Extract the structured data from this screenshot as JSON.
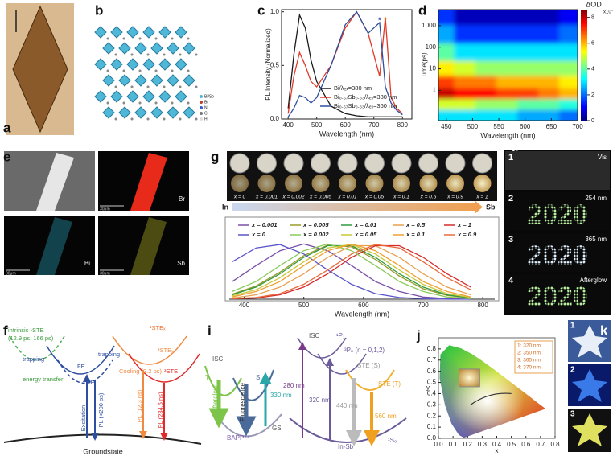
{
  "panel_labels": [
    "a",
    "b",
    "c",
    "d",
    "e",
    "f",
    "g",
    "h",
    "i",
    "j",
    "k"
  ],
  "panel_b": {
    "legend": [
      "Bi/Sb",
      "Br",
      "N",
      "C",
      "H"
    ]
  },
  "panel_e": {
    "labels": [
      "Br",
      "Bi",
      "Sb"
    ],
    "scale_labels": [
      "30μm",
      "30μm",
      "30μm"
    ]
  },
  "panel_f": {
    "labels": [
      "intrinsic ¹STE",
      "(12.9 ps, 166 ps)",
      "trapping",
      "trapping",
      "FE",
      "FE",
      "¹STEₓ",
      "³STEₓ",
      "³STE",
      "Cooling (3.2 ps)",
      "energy transfer",
      "Excitation",
      "PL (<200 ps)",
      "PL (12.3 ns)",
      "PL (234.5 ns)",
      "Groundstate"
    ]
  },
  "panel_h": {
    "items": [
      {
        "number": "1",
        "label": "Vis"
      },
      {
        "number": "2",
        "label": "254 nm",
        "display": "2020"
      },
      {
        "number": "3",
        "label": "365 nm",
        "display": "2020"
      },
      {
        "number": "4",
        "label": "Afterglow",
        "display": "2020"
      }
    ]
  },
  "panel_i": {
    "labels": [
      "ISC",
      "T₁",
      "S₁",
      "Afterglow",
      "Fluorescence",
      "330 nm",
      "BAPP⁴⁺",
      "GS",
      "ISC",
      "¹P₁",
      "³Pₙ (n = 0,1,2)",
      "STE (S)",
      "STE (T)",
      "280 nm",
      "320 nm",
      "440 nm",
      "560 nm",
      "¹S₀",
      "In-Sb"
    ]
  },
  "panel_k": {
    "numbers": [
      "1",
      "2",
      "3"
    ]
  },
  "chart_data": [
    {
      "type": "line",
      "xlabel": "Wavelength (nm)",
      "ylabel": "PL Intensity (Normalized)",
      "xlim": [
        377,
        833
      ],
      "xticks": [
        400,
        500,
        600,
        700,
        800
      ],
      "ylim": [
        0,
        1.02
      ],
      "yticks": [
        {
          "value": 0,
          "label": "0.0"
        },
        0.5,
        {
          "value": 1,
          "label": "1.0"
        }
      ],
      "x": [
        400,
        420,
        440,
        460,
        480,
        500,
        550,
        600,
        640,
        680,
        720,
        740,
        760,
        780,
        800
      ],
      "series": [
        {
          "name": "Bi/λₑₓ=380 nm",
          "color": "#1a1a1a",
          "values": [
            0.1,
            0.6,
            0.97,
            0.85,
            0.55,
            0.35,
            0.12,
            0.05,
            0.03,
            0.02,
            0.02,
            0.02,
            0.02,
            0.02,
            0.02
          ]
        },
        {
          "name": "Bi₀.₆₇Sb₀.₃₃/λₑₓ=380 nm",
          "color": "#e03a2a",
          "values": [
            0.05,
            0.4,
            0.62,
            0.5,
            0.35,
            0.3,
            0.5,
            0.85,
            1.0,
            0.8,
            0.4,
            0.95,
            0.2,
            0.1,
            0.05
          ]
        },
        {
          "name": "Bi₀.₆₇Sb₀.₃₃/λₑₓ=360 nm",
          "color": "#2d4f9e",
          "values": [
            0.02,
            0.1,
            0.22,
            0.2,
            0.15,
            0.2,
            0.5,
            0.88,
            1.0,
            0.8,
            0.9,
            0.3,
            0.15,
            0.08,
            0.04
          ]
        }
      ],
      "peak_markers": [
        {
          "text": "*",
          "x": 720,
          "color": "#2d4f9e"
        },
        {
          "text": "*",
          "x": 740,
          "color": "#e8782a"
        }
      ]
    },
    {
      "type": "heatmap",
      "xlabel": "Wavelength (nm)",
      "ylabel": "Time(ps)",
      "log_y": true,
      "colorbar_title": "ΔOD",
      "colorbar_unit": "x10⁻³",
      "xlim": [
        435,
        700
      ],
      "xticks": [
        450,
        500,
        550,
        600,
        650,
        700
      ],
      "ylim": [
        0.04,
        5500
      ],
      "yticks": [
        1,
        10,
        100,
        1000
      ],
      "zlim": [
        0,
        8.6
      ],
      "zticks": [
        0,
        2,
        4,
        6,
        8
      ],
      "x": [
        445,
        485,
        525,
        565,
        605,
        645,
        685
      ],
      "y": [
        0.07,
        0.25,
        0.7,
        2.5,
        10,
        60,
        400,
        3000
      ],
      "values": [
        [
          3,
          3,
          3,
          3,
          2.5,
          2.5,
          2
        ],
        [
          5,
          5,
          4.5,
          4.5,
          4,
          4,
          3.5
        ],
        [
          8,
          7.5,
          7.5,
          7,
          7,
          6.5,
          6
        ],
        [
          7,
          6.5,
          6.5,
          6,
          6,
          6,
          5.5
        ],
        [
          5.5,
          5,
          4.5,
          4.5,
          4.5,
          4.5,
          4.5
        ],
        [
          4,
          3,
          3,
          3,
          3,
          3,
          3
        ],
        [
          2.5,
          1.5,
          1.5,
          1.5,
          1.5,
          1.5,
          2
        ],
        [
          1.5,
          0.5,
          0.5,
          0.5,
          0.5,
          0.5,
          1
        ]
      ]
    },
    {
      "type": "line",
      "xlabel": "Wavelength (nm)",
      "sample_labels": [
        "x = 0",
        "x = 0.001",
        "x = 0.002",
        "x = 0.005",
        "x = 0.01",
        "x = 0.05",
        "x = 0.1",
        "x = 0.5",
        "x = 0.9",
        "x = 1"
      ],
      "composition_ends": [
        "In",
        "Sb"
      ],
      "xlim": [
        375,
        820
      ],
      "xticks": [
        400,
        500,
        600,
        700,
        800
      ],
      "ylim": [
        0,
        1.05
      ],
      "x": [
        380,
        420,
        460,
        500,
        540,
        580,
        620,
        660,
        700,
        740,
        780
      ],
      "series": [
        {
          "name": "x = 0.001",
          "color": "#7b4fa8",
          "values": [
            0.32,
            0.61,
            0.88,
            1,
            0.88,
            0.61,
            0.32,
            0.14,
            0.04,
            0.01,
            0
          ]
        },
        {
          "name": "x = 0.005",
          "color": "#9a9a2a",
          "values": [
            0.09,
            0.24,
            0.49,
            0.79,
            0.98,
            0.95,
            0.72,
            0.42,
            0.19,
            0.07,
            0.02
          ]
        },
        {
          "name": "x = 0.01",
          "color": "#2e9a3e",
          "values": [
            0.08,
            0.22,
            0.46,
            0.76,
            0.97,
            0.97,
            0.76,
            0.46,
            0.22,
            0.08,
            0.02
          ]
        },
        {
          "name": "x = 0.5",
          "color": "#e8a050",
          "values": [
            0.02,
            0.08,
            0.22,
            0.46,
            0.76,
            0.97,
            0.97,
            0.76,
            0.46,
            0.22,
            0.08
          ]
        },
        {
          "name": "x = 1",
          "color": "#d42a2a",
          "values": [
            0.01,
            0.02,
            0.08,
            0.22,
            0.46,
            0.76,
            0.97,
            0.97,
            0.76,
            0.46,
            0.22
          ]
        },
        {
          "name": "x = 0",
          "color": "#5a55c8",
          "values": [
            0.68,
            0.93,
            0.99,
            0.82,
            0.53,
            0.27,
            0.1,
            0.03,
            0.01,
            0,
            0
          ]
        },
        {
          "name": "x = 0.002",
          "color": "#8acb5a",
          "values": [
            0.14,
            0.32,
            0.61,
            0.88,
            1,
            0.88,
            0.61,
            0.32,
            0.14,
            0.04,
            0.01
          ]
        },
        {
          "name": "x = 0.05",
          "color": "#c8c83a",
          "values": [
            0.06,
            0.17,
            0.39,
            0.68,
            0.93,
            0.99,
            0.82,
            0.53,
            0.27,
            0.1,
            0.03
          ]
        },
        {
          "name": "x = 0.1",
          "color": "#f0a030",
          "values": [
            0.04,
            0.14,
            0.32,
            0.61,
            0.88,
            1,
            0.88,
            0.61,
            0.32,
            0.14,
            0.04
          ]
        },
        {
          "name": "x = 0.9",
          "color": "#e86a3a",
          "values": [
            0.01,
            0.03,
            0.1,
            0.27,
            0.53,
            0.82,
            0.99,
            0.93,
            0.68,
            0.39,
            0.17
          ]
        }
      ]
    },
    {
      "type": "cie",
      "xlabel": "x",
      "ylabel": "y",
      "xlim": [
        0,
        0.8
      ],
      "xticks": [
        {
          "value": 0,
          "label": "0.0"
        },
        0.1,
        0.2,
        0.3,
        0.4,
        0.5,
        0.6,
        0.7,
        0.8
      ],
      "ylim": [
        0,
        0.9
      ],
      "yticks": [
        {
          "value": 0,
          "label": "0.0"
        },
        0.1,
        0.2,
        0.3,
        0.4,
        0.5,
        0.6,
        0.7,
        0.8
      ],
      "legend": [
        "1: 320 nm",
        "2: 350 nm",
        "3: 365 nm",
        "4: 370 nm"
      ]
    }
  ]
}
